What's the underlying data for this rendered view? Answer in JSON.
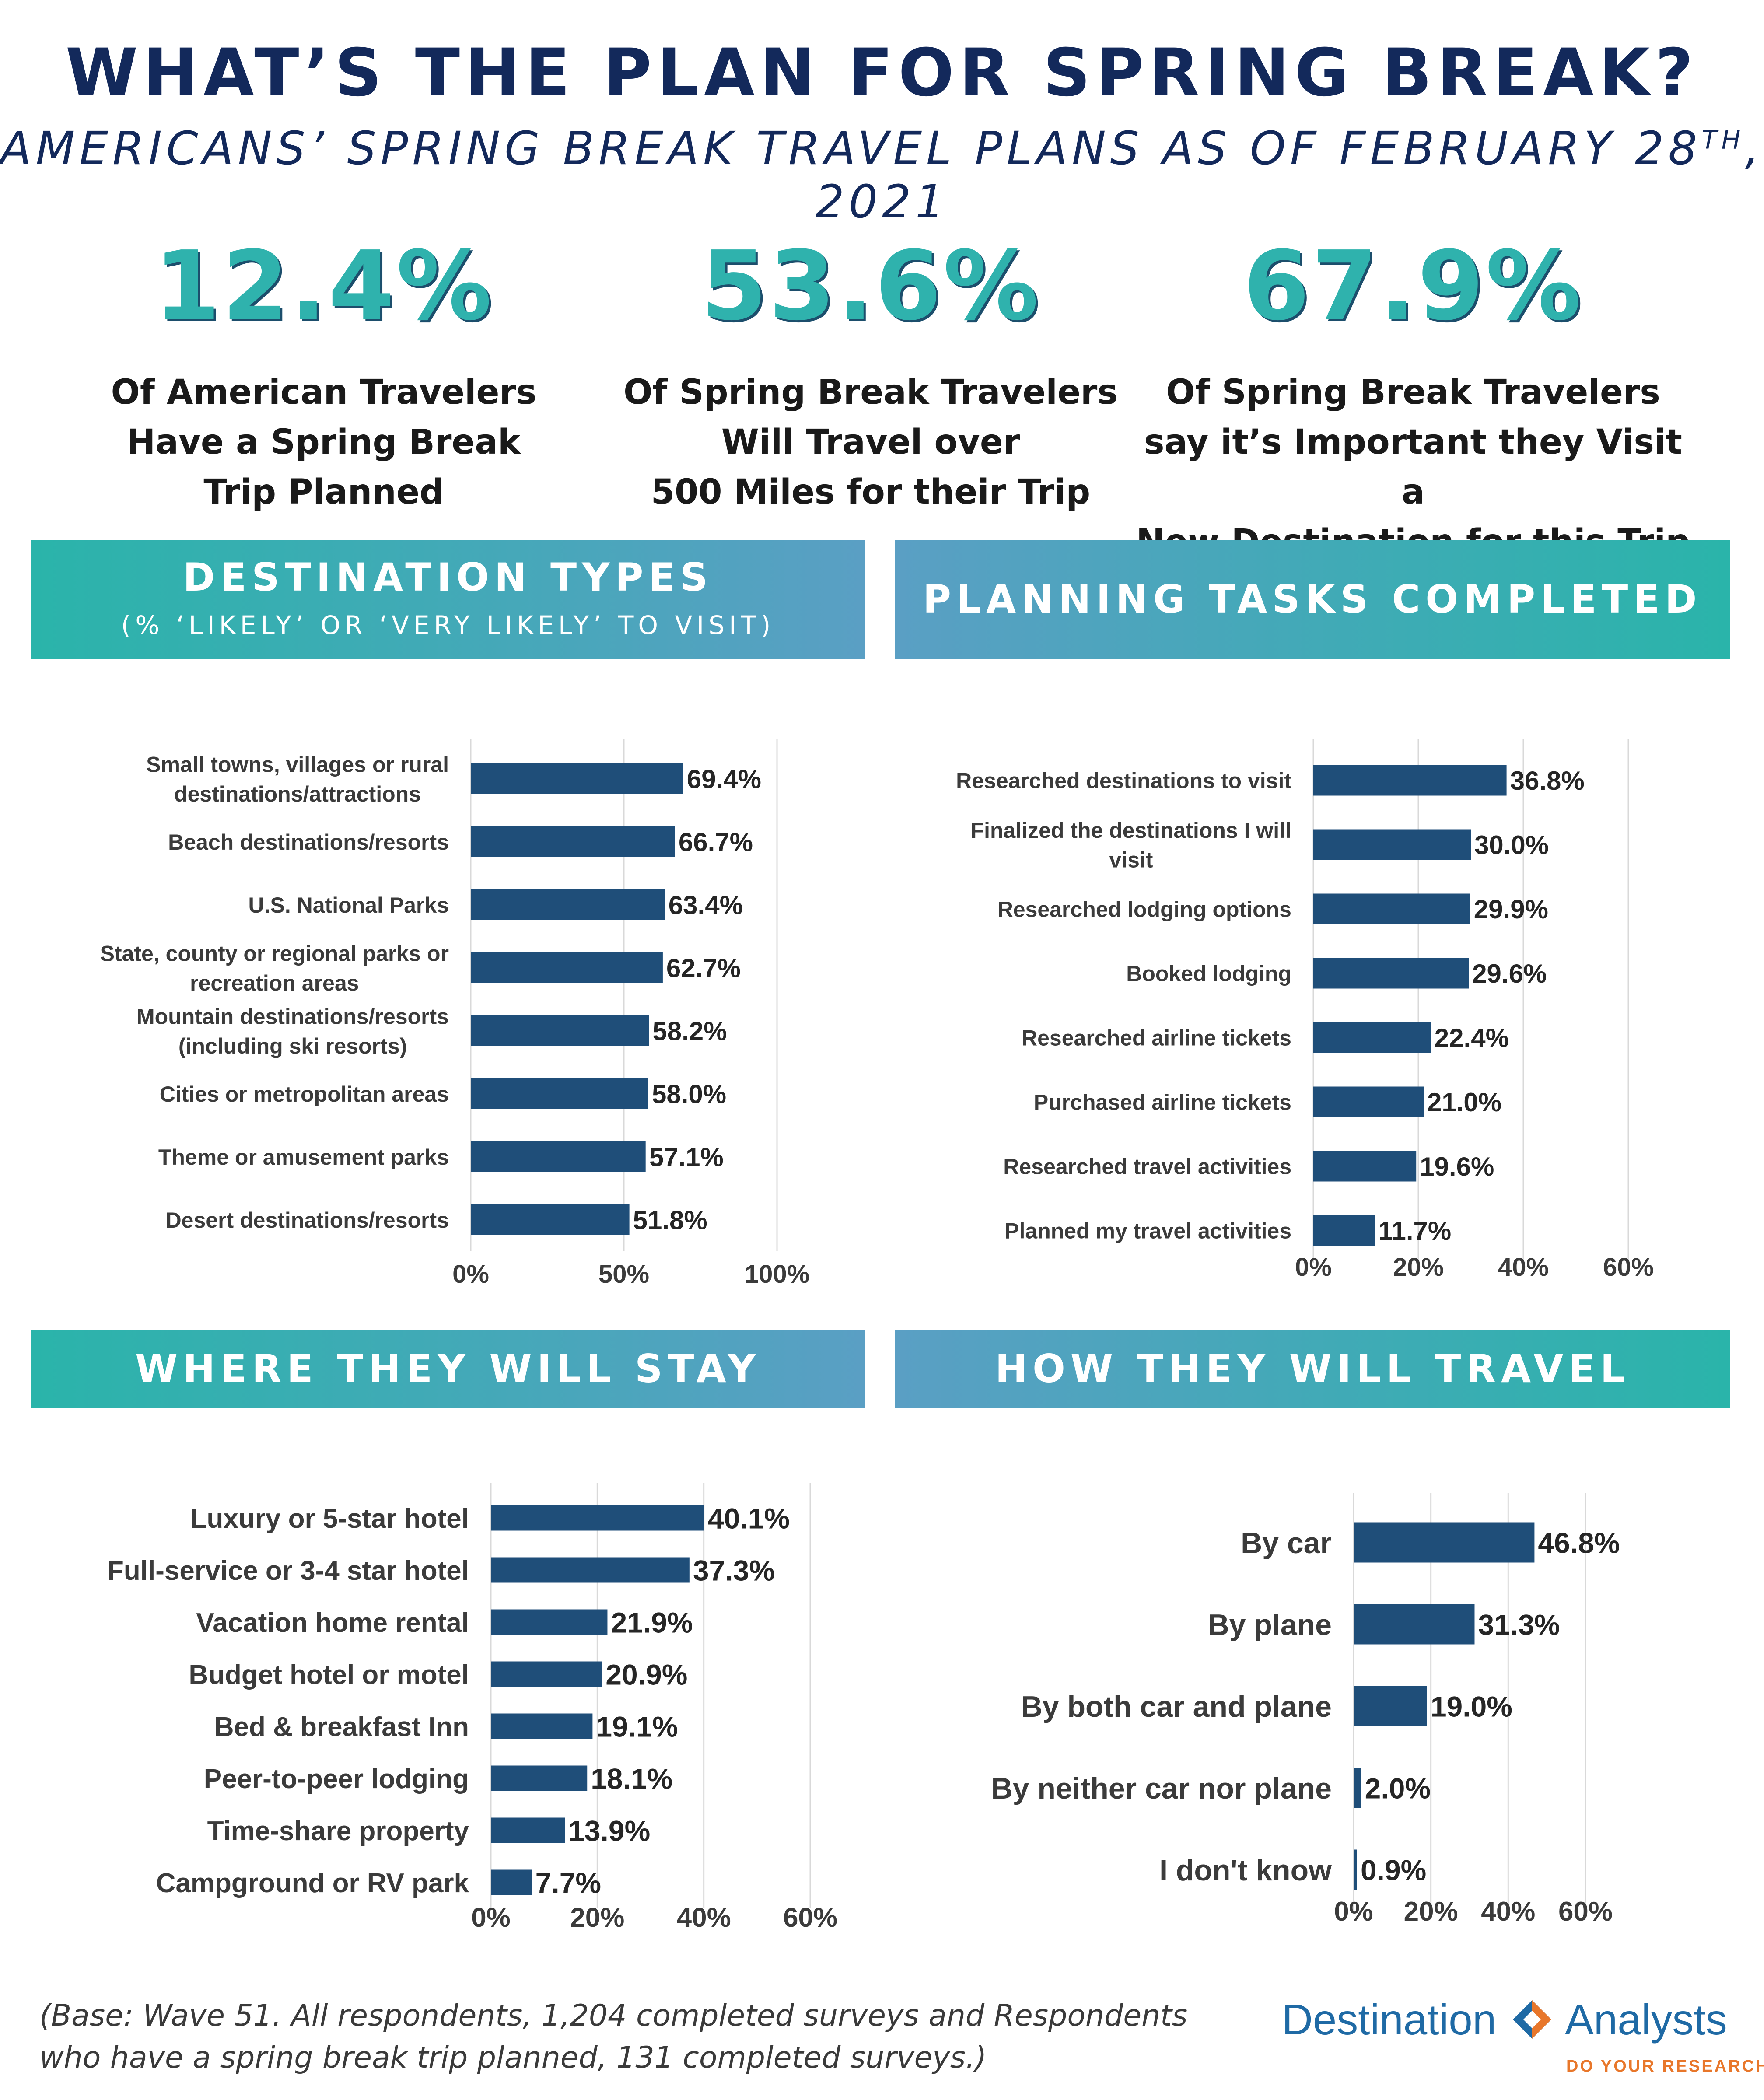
{
  "header": {
    "title": "WHAT’S THE PLAN FOR SPRING BREAK?",
    "subtitle_main": "AMERICANS’ SPRING BREAK TRAVEL PLANS AS OF FEBRUARY 28",
    "subtitle_sup": "TH",
    "subtitle_end": ", 2021"
  },
  "stats": [
    {
      "value": "12.4%",
      "lines": [
        "Of American Travelers",
        "Have a Spring Break",
        "Trip Planned"
      ]
    },
    {
      "value": "53.6%",
      "lines": [
        "Of Spring Break Travelers",
        "Will Travel over",
        "500 Miles for their Trip"
      ]
    },
    {
      "value": "67.9%",
      "lines": [
        "Of Spring Break Travelers",
        "say it’s Important they Visit a",
        "New Destination for this Trip"
      ]
    }
  ],
  "sections": {
    "destination": {
      "title": "DESTINATION TYPES",
      "subtitle": "(% ‘LIKELY’ OR ‘VERY LIKELY’ TO VISIT)"
    },
    "planning": {
      "title": "PLANNING TASKS COMPLETED"
    },
    "stay": {
      "title": "WHERE THEY WILL STAY"
    },
    "travel": {
      "title": "HOW THEY WILL TRAVEL"
    }
  },
  "chart_data": [
    {
      "id": "destination",
      "type": "bar",
      "orientation": "horizontal",
      "bar_color": "#1f4e79",
      "categories": [
        [
          "Small towns, villages or rural",
          "destinations/attractions"
        ],
        [
          "Beach destinations/resorts"
        ],
        [
          "U.S. National Parks"
        ],
        [
          "State, county or regional parks or",
          "recreation areas"
        ],
        [
          "Mountain destinations/resorts",
          "(including ski resorts)"
        ],
        [
          "Cities or metropolitan areas"
        ],
        [
          "Theme or amusement parks"
        ],
        [
          "Desert destinations/resorts"
        ]
      ],
      "values": [
        69.4,
        66.7,
        63.4,
        62.7,
        58.2,
        58.0,
        57.1,
        51.8
      ],
      "value_labels": [
        "69.4%",
        "66.7%",
        "63.4%",
        "62.7%",
        "58.2%",
        "58.0%",
        "57.1%",
        "51.8%"
      ],
      "xlim": [
        0,
        100
      ],
      "ticks": [
        0,
        50,
        100
      ],
      "tick_labels": [
        "0%",
        "50%",
        "100%"
      ],
      "grid": true
    },
    {
      "id": "planning",
      "type": "bar",
      "orientation": "horizontal",
      "bar_color": "#1f4e79",
      "categories": [
        [
          "Researched destinations to visit"
        ],
        [
          "Finalized the destinations I will",
          "visit"
        ],
        [
          "Researched lodging options"
        ],
        [
          "Booked lodging"
        ],
        [
          "Researched airline tickets"
        ],
        [
          "Purchased airline tickets"
        ],
        [
          "Researched travel activities"
        ],
        [
          "Planned my travel activities"
        ]
      ],
      "values": [
        36.8,
        30.0,
        29.9,
        29.6,
        22.4,
        21.0,
        19.6,
        11.7
      ],
      "value_labels": [
        "36.8%",
        "30.0%",
        "29.9%",
        "29.6%",
        "22.4%",
        "21.0%",
        "19.6%",
        "11.7%"
      ],
      "xlim": [
        0,
        60
      ],
      "ticks": [
        0,
        20,
        40,
        60
      ],
      "tick_labels": [
        "0%",
        "20%",
        "40%",
        "60%"
      ],
      "grid": true
    },
    {
      "id": "stay",
      "type": "bar",
      "orientation": "horizontal",
      "bar_color": "#1f4e79",
      "categories": [
        [
          "Luxury or 5-star hotel"
        ],
        [
          "Full-service or 3-4 star hotel"
        ],
        [
          "Vacation home rental"
        ],
        [
          "Budget hotel or motel"
        ],
        [
          "Bed & breakfast Inn"
        ],
        [
          "Peer-to-peer lodging"
        ],
        [
          "Time-share property"
        ],
        [
          "Campground or RV park"
        ]
      ],
      "values": [
        40.1,
        37.3,
        21.9,
        20.9,
        19.1,
        18.1,
        13.9,
        7.7
      ],
      "value_labels": [
        "40.1%",
        "37.3%",
        "21.9%",
        "20.9%",
        "19.1%",
        "18.1%",
        "13.9%",
        "7.7%"
      ],
      "xlim": [
        0,
        60
      ],
      "ticks": [
        0,
        20,
        40,
        60
      ],
      "tick_labels": [
        "0%",
        "20%",
        "40%",
        "60%"
      ],
      "grid": true
    },
    {
      "id": "travel",
      "type": "bar",
      "orientation": "horizontal",
      "bar_color": "#1f4e79",
      "categories": [
        [
          "By car"
        ],
        [
          "By plane"
        ],
        [
          "By both car and plane"
        ],
        [
          "By neither car nor plane"
        ],
        [
          "I don't know"
        ]
      ],
      "values": [
        46.8,
        31.3,
        19.0,
        2.0,
        0.9
      ],
      "value_labels": [
        "46.8%",
        "31.3%",
        "19.0%",
        "2.0%",
        "0.9%"
      ],
      "xlim": [
        0,
        60
      ],
      "ticks": [
        0,
        20,
        40,
        60
      ],
      "tick_labels": [
        "0%",
        "20%",
        "40%",
        "60%"
      ],
      "grid": true
    }
  ],
  "footer": {
    "footnote_lines": [
      "(Base: Wave 51. All respondents, 1,204 completed surveys and Respondents",
      "who have a spring break trip planned, 131 completed surveys.)"
    ],
    "logo_left": "Destination",
    "logo_right": "Analysts",
    "logo_tagline": "DO YOUR RESEARCH",
    "logo_colors": {
      "blue": "#1f6aa5",
      "orange": "#e8772b"
    }
  }
}
